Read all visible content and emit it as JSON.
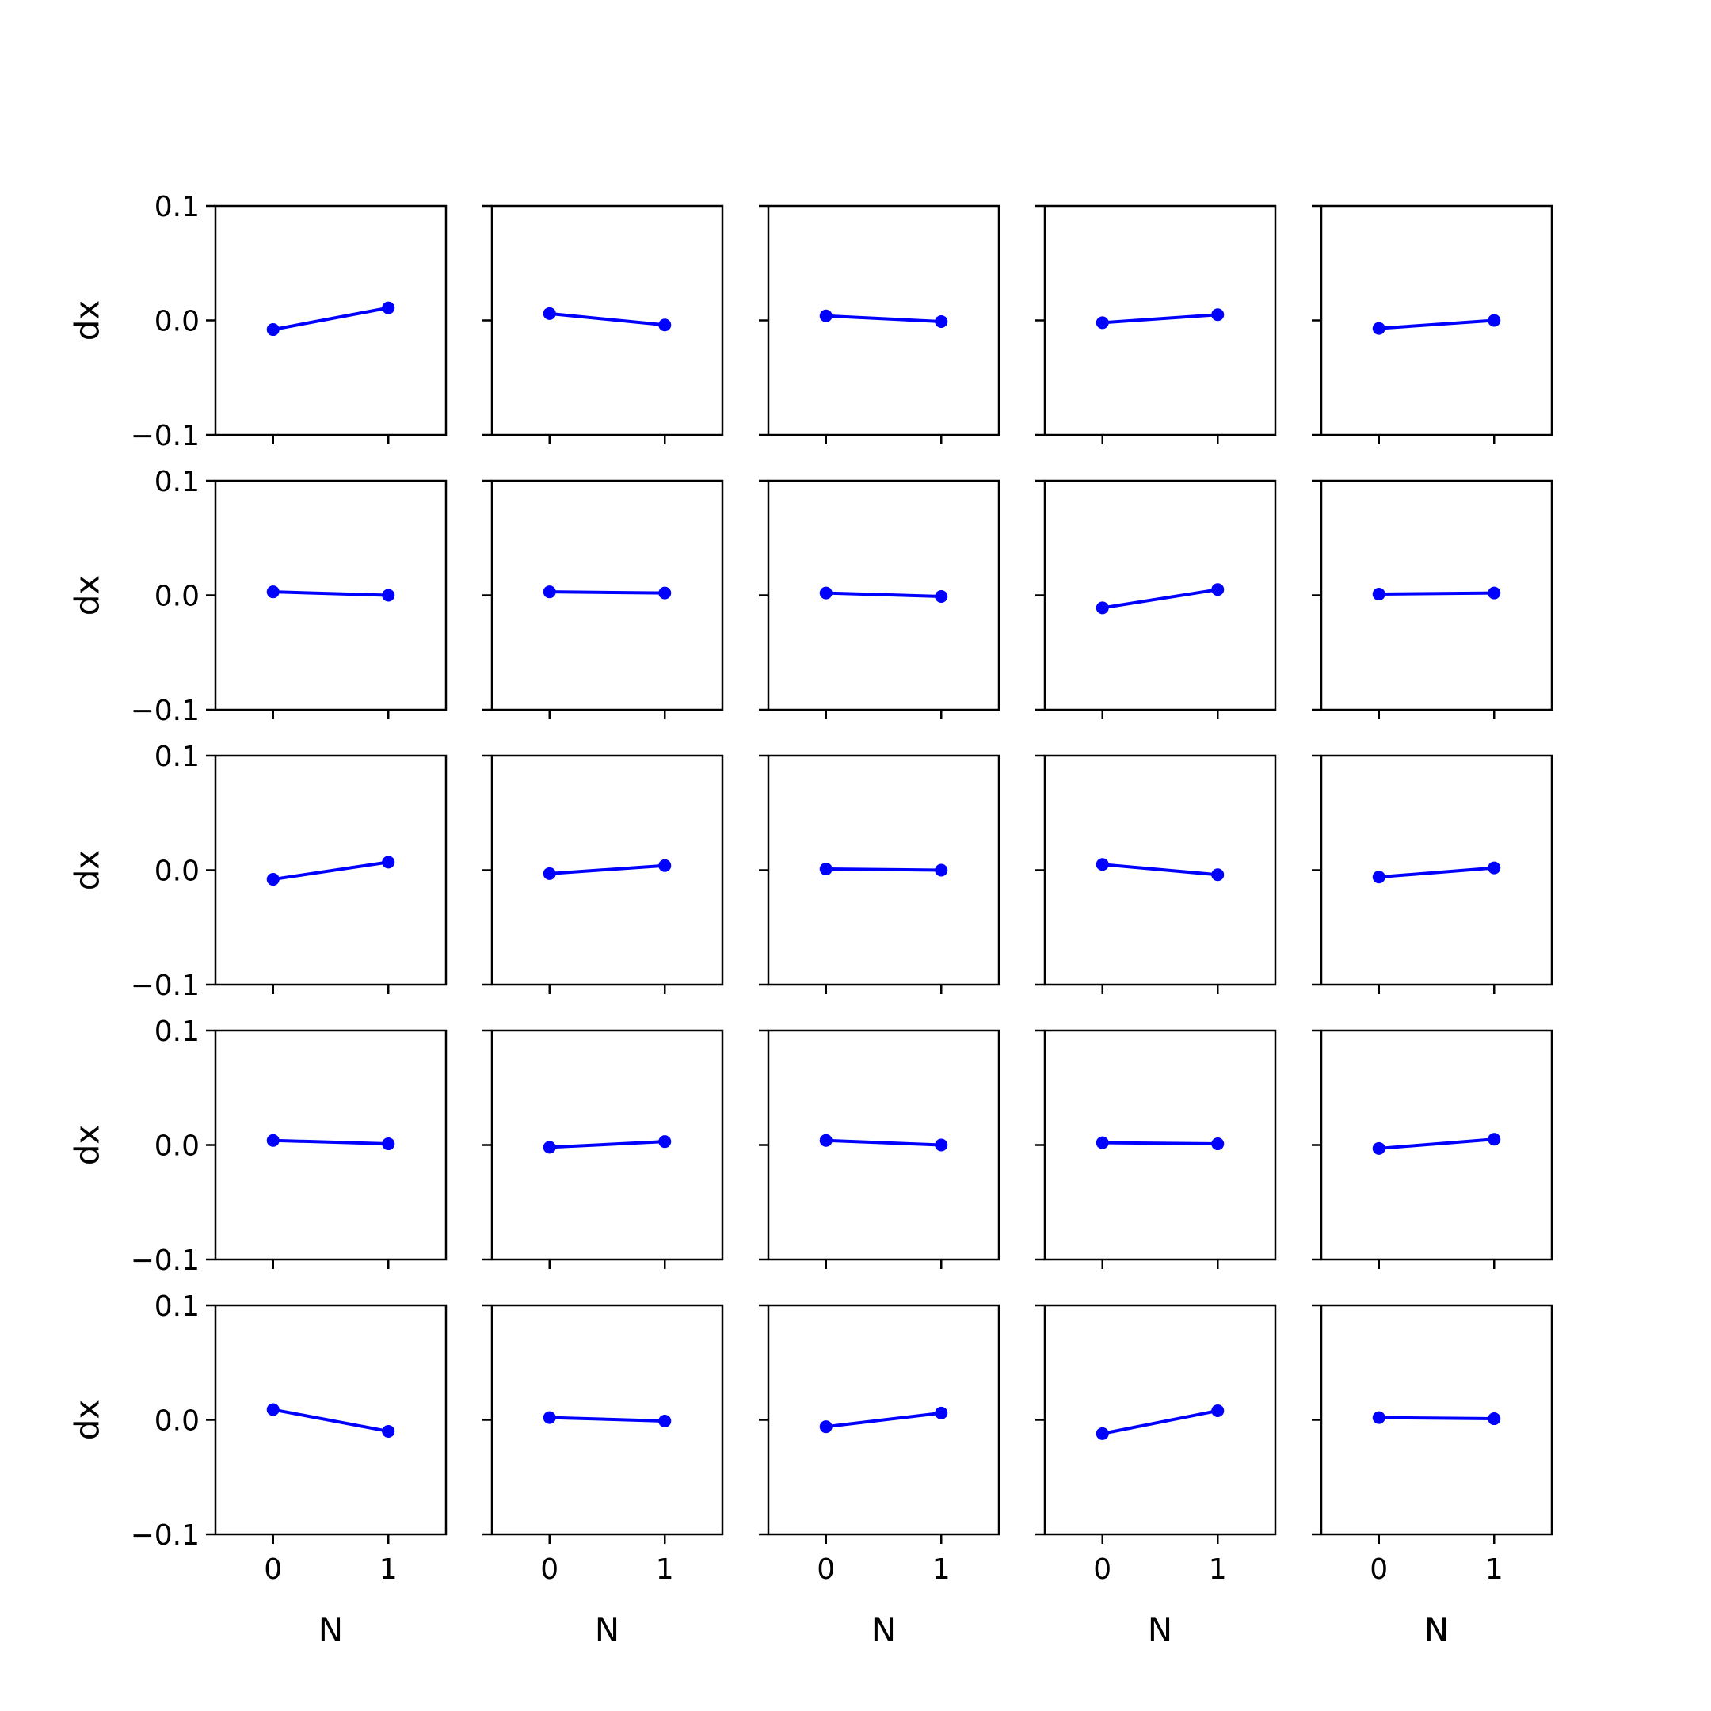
{
  "chart_data": {
    "type": "line",
    "layout": "grid",
    "rows": 5,
    "cols": 5,
    "x": [
      0,
      1
    ],
    "xlim": [
      -0.5,
      1.5
    ],
    "ylim": [
      -0.1,
      0.1
    ],
    "xticks": [
      "0",
      "1"
    ],
    "yticks": [
      "0.1",
      "0.0",
      "−0.1"
    ],
    "xlabel": "N",
    "ylabel": "dx",
    "color": "#0000ff",
    "grid": false,
    "subplots": [
      [
        {
          "y": [
            -0.008,
            0.011
          ]
        },
        {
          "y": [
            0.006,
            -0.004
          ]
        },
        {
          "y": [
            0.004,
            -0.001
          ]
        },
        {
          "y": [
            -0.002,
            0.005
          ]
        },
        {
          "y": [
            -0.007,
            0.0
          ]
        }
      ],
      [
        {
          "y": [
            0.003,
            0.0
          ]
        },
        {
          "y": [
            0.003,
            0.002
          ]
        },
        {
          "y": [
            0.002,
            -0.001
          ]
        },
        {
          "y": [
            -0.011,
            0.005
          ]
        },
        {
          "y": [
            0.001,
            0.002
          ]
        }
      ],
      [
        {
          "y": [
            -0.008,
            0.007
          ]
        },
        {
          "y": [
            -0.003,
            0.004
          ]
        },
        {
          "y": [
            0.001,
            0.0
          ]
        },
        {
          "y": [
            0.005,
            -0.004
          ]
        },
        {
          "y": [
            -0.006,
            0.002
          ]
        }
      ],
      [
        {
          "y": [
            0.004,
            0.001
          ]
        },
        {
          "y": [
            -0.002,
            0.003
          ]
        },
        {
          "y": [
            0.004,
            0.0
          ]
        },
        {
          "y": [
            0.002,
            0.001
          ]
        },
        {
          "y": [
            -0.003,
            0.005
          ]
        }
      ],
      [
        {
          "y": [
            0.009,
            -0.01
          ]
        },
        {
          "y": [
            0.002,
            -0.001
          ]
        },
        {
          "y": [
            -0.006,
            0.006
          ]
        },
        {
          "y": [
            -0.012,
            0.008
          ]
        },
        {
          "y": [
            0.002,
            0.001
          ]
        }
      ]
    ]
  }
}
